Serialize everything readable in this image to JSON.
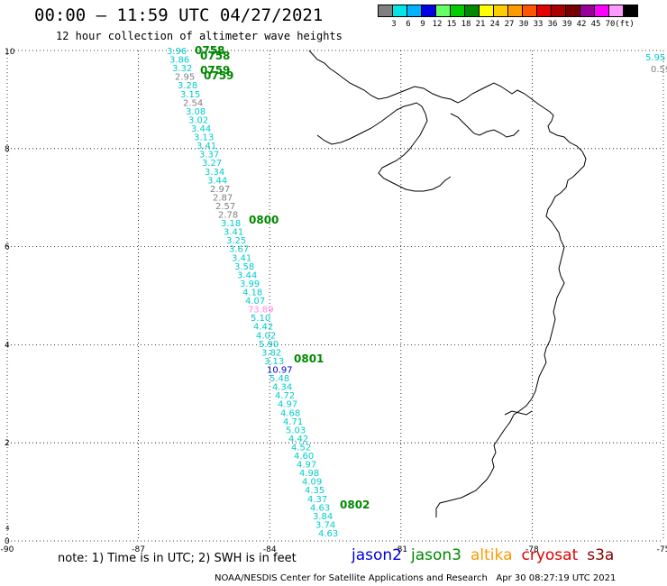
{
  "title": "00:00 – 11:59 UTC 04/27/2021",
  "subtitle": "12 hour collection of altimeter wave heights",
  "colorbar": {
    "colors": [
      "#808080",
      "#00e5e5",
      "#00b2ff",
      "#0000e5",
      "#66ff66",
      "#00cc00",
      "#008800",
      "#ffff00",
      "#ffcc00",
      "#ff9900",
      "#ff5500",
      "#e50000",
      "#aa0000",
      "#770000",
      "#990099",
      "#ff00ff",
      "#ff99ff",
      "#000000"
    ],
    "labels": [
      "3",
      "6",
      "9",
      "12",
      "15",
      "18",
      "21",
      "24",
      "27",
      "30",
      "33",
      "36",
      "39",
      "42",
      "45",
      "70",
      "(ft)"
    ]
  },
  "axes": {
    "x_ticks": [
      "-90",
      "-87",
      "-84",
      "-81",
      "-78",
      "-75"
    ],
    "y_ticks": [
      "0",
      "2",
      "4",
      "6",
      "8",
      "10"
    ],
    "y_ticks_extra": [
      "4"
    ],
    "xlim": [
      -90,
      -75
    ],
    "ylim": [
      0,
      10
    ],
    "grid": true
  },
  "track_labels": [
    {
      "text": "0758",
      "color": "#008800"
    },
    {
      "text": "0758",
      "color": "#008800"
    },
    {
      "text": "0759",
      "color": "#008800"
    },
    {
      "text": "0759",
      "color": "#008800"
    },
    {
      "text": "0800",
      "color": "#008800"
    },
    {
      "text": "0801",
      "color": "#008800"
    },
    {
      "text": "0802",
      "color": "#008800"
    }
  ],
  "wave_heights": [
    {
      "value": "3.96",
      "color": "#00cccc"
    },
    {
      "value": "3.86",
      "color": "#00cccc"
    },
    {
      "value": "3.32",
      "color": "#00cccc"
    },
    {
      "value": "2.95",
      "color": "#808080"
    },
    {
      "value": "3.28",
      "color": "#00cccc"
    },
    {
      "value": "3.15",
      "color": "#00cccc"
    },
    {
      "value": "2.54",
      "color": "#808080"
    },
    {
      "value": "3.08",
      "color": "#00cccc"
    },
    {
      "value": "3.02",
      "color": "#00cccc"
    },
    {
      "value": "3.44",
      "color": "#00cccc"
    },
    {
      "value": "3.13",
      "color": "#00cccc"
    },
    {
      "value": "3.41",
      "color": "#00cccc"
    },
    {
      "value": "3.37",
      "color": "#00cccc"
    },
    {
      "value": "3.27",
      "color": "#00cccc"
    },
    {
      "value": "3.34",
      "color": "#00cccc"
    },
    {
      "value": "3.44",
      "color": "#00cccc"
    },
    {
      "value": "2.97",
      "color": "#808080"
    },
    {
      "value": "2.87",
      "color": "#808080"
    },
    {
      "value": "2.57",
      "color": "#808080"
    },
    {
      "value": "2.78",
      "color": "#808080"
    },
    {
      "value": "3.18",
      "color": "#00cccc"
    },
    {
      "value": "3.41",
      "color": "#00cccc"
    },
    {
      "value": "3.25",
      "color": "#00cccc"
    },
    {
      "value": "3.67",
      "color": "#00cccc"
    },
    {
      "value": "3.41",
      "color": "#00cccc"
    },
    {
      "value": "3.58",
      "color": "#00cccc"
    },
    {
      "value": "3.44",
      "color": "#00cccc"
    },
    {
      "value": "3.99",
      "color": "#00cccc"
    },
    {
      "value": "4.18",
      "color": "#00cccc"
    },
    {
      "value": "4.07",
      "color": "#00cccc"
    },
    {
      "value": "73.89",
      "color": "#ff88ee"
    },
    {
      "value": "5.10",
      "color": "#00cccc"
    },
    {
      "value": "4.42",
      "color": "#00cccc"
    },
    {
      "value": "4.02",
      "color": "#00cccc"
    },
    {
      "value": "5.90",
      "color": "#00cccc"
    },
    {
      "value": "3.82",
      "color": "#00cccc"
    },
    {
      "value": "3.13",
      "color": "#00cccc"
    },
    {
      "value": "10.97",
      "color": "#0000cc"
    },
    {
      "value": "5.48",
      "color": "#00cccc"
    },
    {
      "value": "4.34",
      "color": "#00cccc"
    },
    {
      "value": "4.72",
      "color": "#00cccc"
    },
    {
      "value": "4.97",
      "color": "#00cccc"
    },
    {
      "value": "4.68",
      "color": "#00cccc"
    },
    {
      "value": "4.71",
      "color": "#00cccc"
    },
    {
      "value": "5.03",
      "color": "#00cccc"
    },
    {
      "value": "4.42",
      "color": "#00cccc"
    },
    {
      "value": "4.52",
      "color": "#00cccc"
    },
    {
      "value": "4.60",
      "color": "#00cccc"
    },
    {
      "value": "4.97",
      "color": "#00cccc"
    },
    {
      "value": "4.98",
      "color": "#00cccc"
    },
    {
      "value": "4.09",
      "color": "#00cccc"
    },
    {
      "value": "4.35",
      "color": "#00cccc"
    },
    {
      "value": "4.37",
      "color": "#00cccc"
    },
    {
      "value": "4.63",
      "color": "#00cccc"
    },
    {
      "value": "3.84",
      "color": "#00cccc"
    },
    {
      "value": "3.74",
      "color": "#00cccc"
    },
    {
      "value": "4.63",
      "color": "#00cccc"
    }
  ],
  "edge_labels": [
    {
      "value": "5.95",
      "color": "#00cccc"
    },
    {
      "value": "0.59",
      "color": "#808080"
    }
  ],
  "note": "note: 1) Time is in UTC; 2) SWH is in feet",
  "satellites": [
    {
      "name": "jason2",
      "color": "#0000dd"
    },
    {
      "name": "jason3",
      "color": "#008800"
    },
    {
      "name": "altika",
      "color": "#ff9900"
    },
    {
      "name": "cryosat",
      "color": "#dd0000"
    },
    {
      "name": "s3a",
      "color": "#880000"
    }
  ],
  "credit": "NOAA/NESDIS Center for Satellite Applications and Research   Apr 30 08:27:19 UTC 2021"
}
